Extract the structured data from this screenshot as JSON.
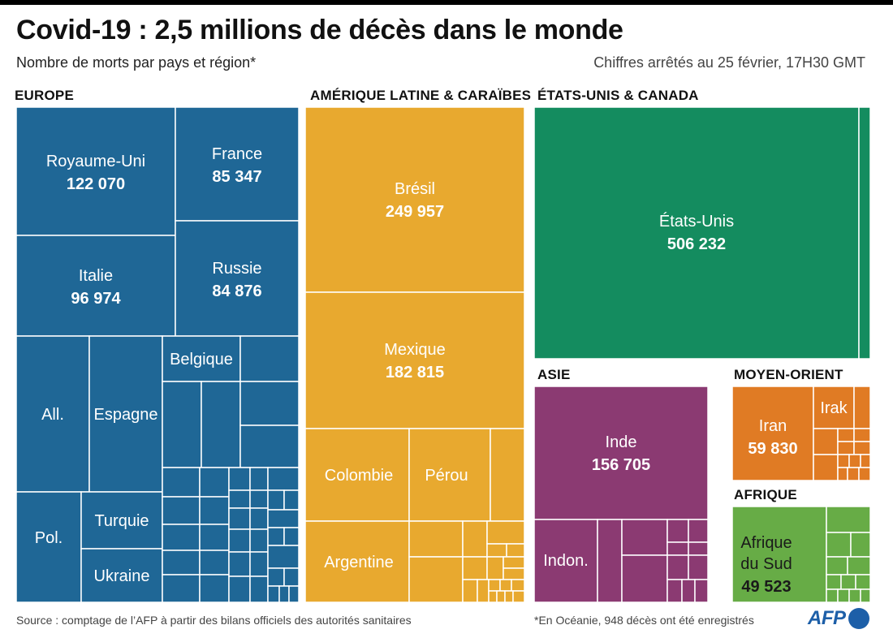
{
  "title": "Covid-19 : 2,5 millions de décès dans le monde",
  "subtitle": "Nombre de morts par pays et région*",
  "date_note": "Chiffres arrêtés au 25 février, 17H30 GMT",
  "source": "Source : comptage de l’AFP à partir des bilans officiels des autorités sanitaires",
  "footnote": "*En Océanie, 948 décès ont été enregistrés",
  "logo_text": "AFP",
  "colors": {
    "europe": "#1f6796",
    "latam": "#e8a92f",
    "usa_canada": "#148c5f",
    "asie": "#8b3a72",
    "moyen_orient": "#e07b24",
    "afrique": "#67ac46",
    "cell_border": "#ffffff",
    "light_text": "#ffffff",
    "dark_text": "#1a1a1a"
  },
  "chart_data": {
    "type": "treemap",
    "unit": "décès",
    "regions": [
      {
        "id": "europe",
        "name": "Europe",
        "countries": [
          {
            "name": "Royaume-Uni",
            "value": 122070,
            "value_label": "122 070"
          },
          {
            "name": "France",
            "value": 85347,
            "value_label": "85 347"
          },
          {
            "name": "Italie",
            "value": 96974,
            "value_label": "96 974"
          },
          {
            "name": "Russie",
            "value": 84876,
            "value_label": "84 876"
          },
          {
            "name": "All."
          },
          {
            "name": "Espagne"
          },
          {
            "name": "Belgique"
          },
          {
            "name": "Pol."
          },
          {
            "name": "Turquie"
          },
          {
            "name": "Ukraine"
          }
        ]
      },
      {
        "id": "latam",
        "name": "Amérique Latine & Caraïbes",
        "countries": [
          {
            "name": "Brésil",
            "value": 249957,
            "value_label": "249 957"
          },
          {
            "name": "Mexique",
            "value": 182815,
            "value_label": "182 815"
          },
          {
            "name": "Colombie"
          },
          {
            "name": "Pérou"
          },
          {
            "name": "Argentine"
          }
        ]
      },
      {
        "id": "usa_canada",
        "name": "États-Unis & Canada",
        "countries": [
          {
            "name": "États-Unis",
            "value": 506232,
            "value_label": "506 232"
          }
        ]
      },
      {
        "id": "asie",
        "name": "Asie",
        "countries": [
          {
            "name": "Inde",
            "value": 156705,
            "value_label": "156 705"
          },
          {
            "name": "Indon."
          }
        ]
      },
      {
        "id": "moyen_orient",
        "name": "Moyen-Orient",
        "countries": [
          {
            "name": "Iran",
            "value": 59830,
            "value_label": "59 830"
          },
          {
            "name": "Irak"
          }
        ]
      },
      {
        "id": "afrique",
        "name": "Afrique",
        "countries": [
          {
            "name": "Afrique du Sud",
            "name_lines": [
              "Afrique",
              "du Sud"
            ],
            "value": 49523,
            "value_label": "49 523"
          }
        ]
      }
    ]
  }
}
